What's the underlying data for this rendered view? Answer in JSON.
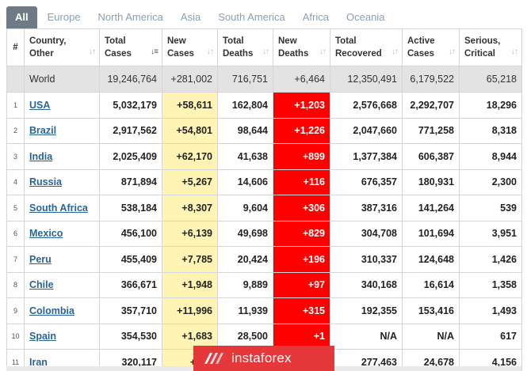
{
  "tabs": [
    {
      "label": "All",
      "active": true
    },
    {
      "label": "Europe",
      "active": false
    },
    {
      "label": "North America",
      "active": false
    },
    {
      "label": "Asia",
      "active": false
    },
    {
      "label": "South America",
      "active": false
    },
    {
      "label": "Africa",
      "active": false
    },
    {
      "label": "Oceania",
      "active": false
    }
  ],
  "columns": [
    {
      "key": "num",
      "line1": "#",
      "line2": "",
      "sortable": false,
      "sorted": false
    },
    {
      "key": "country",
      "line1": "Country,",
      "line2": "Other",
      "sortable": true,
      "sorted": false
    },
    {
      "key": "total_cases",
      "line1": "Total",
      "line2": "Cases",
      "sortable": true,
      "sorted": true
    },
    {
      "key": "new_cases",
      "line1": "New",
      "line2": "Cases",
      "sortable": true,
      "sorted": false
    },
    {
      "key": "total_deaths",
      "line1": "Total",
      "line2": "Deaths",
      "sortable": true,
      "sorted": false
    },
    {
      "key": "new_deaths",
      "line1": "New",
      "line2": "Deaths",
      "sortable": true,
      "sorted": false
    },
    {
      "key": "total_recovered",
      "line1": "Total",
      "line2": "Recovered",
      "sortable": true,
      "sorted": false
    },
    {
      "key": "active_cases",
      "line1": "Active",
      "line2": "Cases",
      "sortable": true,
      "sorted": false
    },
    {
      "key": "serious_critical",
      "line1": "Serious,",
      "line2": "Critical",
      "sortable": true,
      "sorted": false
    }
  ],
  "sort_icon": "sort-arrows-icon",
  "world": {
    "num": "",
    "country": "World",
    "total_cases": "19,246,764",
    "new_cases": "+281,002",
    "total_deaths": "716,751",
    "new_deaths": "+6,464",
    "total_recovered": "12,350,491",
    "active_cases": "6,179,522",
    "serious_critical": "65,218"
  },
  "rows": [
    {
      "num": "1",
      "country": "USA",
      "total_cases": "5,032,179",
      "new_cases": "+58,611",
      "total_deaths": "162,804",
      "new_deaths": "+1,203",
      "total_recovered": "2,576,668",
      "active_cases": "2,292,707",
      "serious_critical": "18,296"
    },
    {
      "num": "2",
      "country": "Brazil",
      "total_cases": "2,917,562",
      "new_cases": "+54,801",
      "total_deaths": "98,644",
      "new_deaths": "+1,226",
      "total_recovered": "2,047,660",
      "active_cases": "771,258",
      "serious_critical": "8,318"
    },
    {
      "num": "3",
      "country": "India",
      "total_cases": "2,025,409",
      "new_cases": "+62,170",
      "total_deaths": "41,638",
      "new_deaths": "+899",
      "total_recovered": "1,377,384",
      "active_cases": "606,387",
      "serious_critical": "8,944"
    },
    {
      "num": "4",
      "country": "Russia",
      "total_cases": "871,894",
      "new_cases": "+5,267",
      "total_deaths": "14,606",
      "new_deaths": "+116",
      "total_recovered": "676,357",
      "active_cases": "180,931",
      "serious_critical": "2,300"
    },
    {
      "num": "5",
      "country": "South Africa",
      "total_cases": "538,184",
      "new_cases": "+8,307",
      "total_deaths": "9,604",
      "new_deaths": "+306",
      "total_recovered": "387,316",
      "active_cases": "141,264",
      "serious_critical": "539"
    },
    {
      "num": "6",
      "country": "Mexico",
      "total_cases": "456,100",
      "new_cases": "+6,139",
      "total_deaths": "49,698",
      "new_deaths": "+829",
      "total_recovered": "304,708",
      "active_cases": "101,694",
      "serious_critical": "3,951"
    },
    {
      "num": "7",
      "country": "Peru",
      "total_cases": "455,409",
      "new_cases": "+7,785",
      "total_deaths": "20,424",
      "new_deaths": "+196",
      "total_recovered": "310,337",
      "active_cases": "124,648",
      "serious_critical": "1,426"
    },
    {
      "num": "8",
      "country": "Chile",
      "total_cases": "366,671",
      "new_cases": "+1,948",
      "total_deaths": "9,889",
      "new_deaths": "+97",
      "total_recovered": "340,168",
      "active_cases": "16,614",
      "serious_critical": "1,358"
    },
    {
      "num": "9",
      "country": "Colombia",
      "total_cases": "357,710",
      "new_cases": "+11,996",
      "total_deaths": "11,939",
      "new_deaths": "+315",
      "total_recovered": "192,355",
      "active_cases": "153,416",
      "serious_critical": "1,493"
    },
    {
      "num": "10",
      "country": "Spain",
      "total_cases": "354,530",
      "new_cases": "+1,683",
      "total_deaths": "28,500",
      "new_deaths": "+1",
      "total_recovered": "N/A",
      "active_cases": "N/A",
      "serious_critical": "617"
    },
    {
      "num": "11",
      "country": "Iran",
      "total_cases": "320,117",
      "new_cases": "+2,...",
      "total_deaths": "",
      "new_deaths": "",
      "total_recovered": "277,463",
      "active_cases": "24,678",
      "serious_critical": "4,156"
    }
  ],
  "colors": {
    "tab_active_bg": "#6e7a86",
    "tab_text": "#8a9fb5",
    "new_cases_bg": "#fff4b3",
    "new_deaths_bg": "#ff0000",
    "world_row_bg": "#e3e3e3",
    "country_link": "#2a6496",
    "watermark_bg": "#e5383b"
  },
  "watermark": {
    "text": "instaforex",
    "icon": "instaforex-logo-icon"
  }
}
